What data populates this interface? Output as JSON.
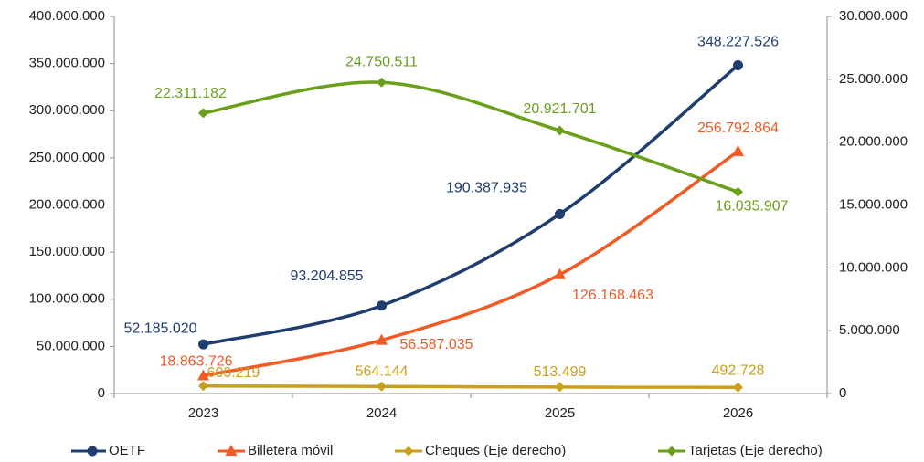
{
  "chart_data": {
    "type": "line",
    "categories": [
      "2023",
      "2024",
      "2025",
      "2026"
    ],
    "series": [
      {
        "name": "OETF",
        "color": "#1f3d6e",
        "marker": "circle",
        "axis": "y",
        "values": [
          52185020,
          93204855,
          190387935,
          348227526
        ],
        "value_labels": [
          "52.185.020",
          "93.204.855",
          "190.387.935",
          "348.227.526"
        ]
      },
      {
        "name": "Billetera móvil",
        "color": "#f15a24",
        "marker": "triangle",
        "axis": "y",
        "values": [
          18863726,
          56587035,
          126168463,
          256792864
        ],
        "value_labels": [
          "18.863.726",
          "56.587.035",
          "126.168.463",
          "256.792.864"
        ]
      },
      {
        "name": "Cheques (Eje derecho)",
        "color": "#c9a01e",
        "marker": "diamond",
        "axis": "y2",
        "values": [
          600219,
          564144,
          513499,
          492728
        ],
        "value_labels": [
          "600.219",
          "564.144",
          "513.499",
          "492.728"
        ]
      },
      {
        "name": "Tarjetas (Eje derecho)",
        "color": "#6a9f1a",
        "marker": "diamond",
        "axis": "y2",
        "values": [
          22311182,
          24750511,
          20921701,
          16035907
        ],
        "value_labels": [
          "22.311.182",
          "24.750.511",
          "20.921.701",
          "16.035.907"
        ]
      }
    ],
    "ylim": [
      0,
      400000000
    ],
    "yticks": [
      0,
      {
        "value": 50000000,
        "label": "50.000.000"
      },
      {
        "value": 100000000,
        "label": "100.000.000"
      },
      {
        "value": 150000000,
        "label": "150.000.000"
      },
      {
        "value": 200000000,
        "label": "200.000.000"
      },
      {
        "value": 250000000,
        "label": "250.000.000"
      },
      {
        "value": 300000000,
        "label": "300.000.000"
      },
      {
        "value": 350000000,
        "label": "350.000.000"
      },
      {
        "value": 400000000,
        "label": "400.000.000"
      }
    ],
    "y2lim": [
      0,
      30000000
    ],
    "y2ticks": [
      0,
      {
        "value": 5000000,
        "label": "5.000.000"
      },
      {
        "value": 10000000,
        "label": "10.000.000"
      },
      {
        "value": 15000000,
        "label": "15.000.000"
      },
      {
        "value": 20000000,
        "label": "20.000.000"
      },
      {
        "value": 25000000,
        "label": "25.000.000"
      },
      {
        "value": 30000000,
        "label": "30.000.000"
      }
    ],
    "grid": false,
    "legend": "bottom"
  }
}
